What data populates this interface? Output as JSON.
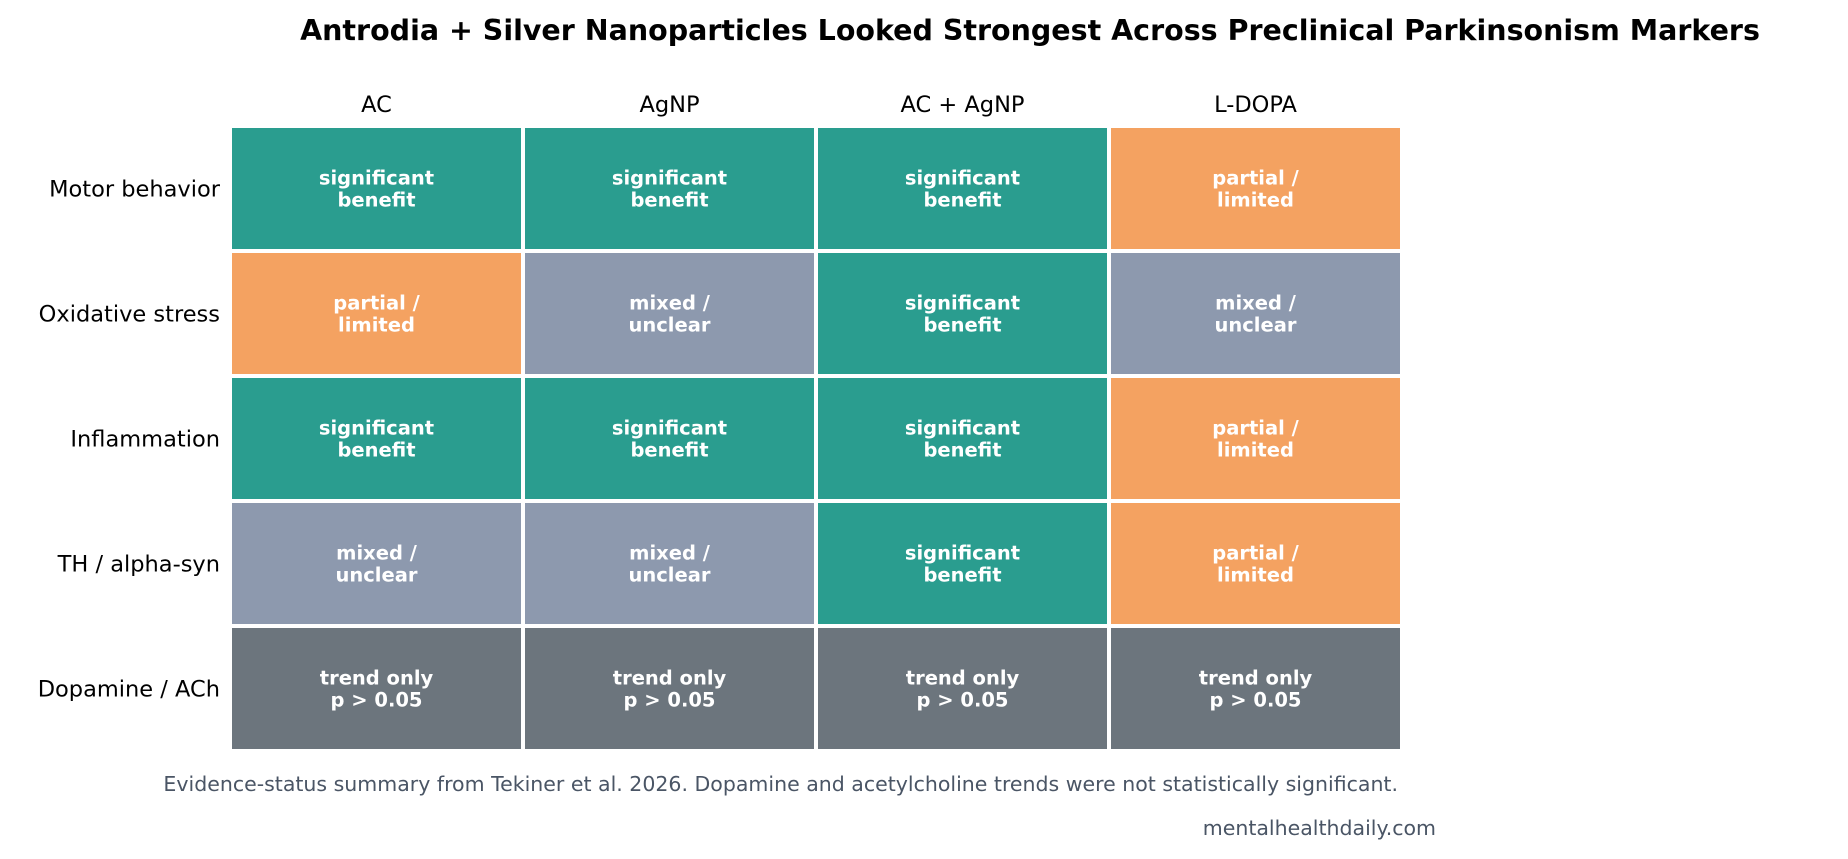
{
  "chart_data": {
    "type": "heatmap",
    "title": "Antrodia + Silver Nanoparticles Looked Strongest Across Preclinical Parkinsonism Markers",
    "columns": [
      "AC",
      "AgNP",
      "AC + AgNP",
      "L-DOPA"
    ],
    "rows": [
      "Motor behavior",
      "Oxidative stress",
      "Inflammation",
      "TH / alpha-syn",
      "Dopamine / ACh"
    ],
    "cells": [
      [
        "significant\nbenefit",
        "significant\nbenefit",
        "significant\nbenefit",
        "partial /\nlimited"
      ],
      [
        "partial /\nlimited",
        "mixed /\nunclear",
        "significant\nbenefit",
        "mixed /\nunclear"
      ],
      [
        "significant\nbenefit",
        "significant\nbenefit",
        "significant\nbenefit",
        "partial /\nlimited"
      ],
      [
        "mixed /\nunclear",
        "mixed /\nunclear",
        "significant\nbenefit",
        "partial /\nlimited"
      ],
      [
        "trend only\np > 0.05",
        "trend only\np > 0.05",
        "trend only\np > 0.05",
        "trend only\np > 0.05"
      ]
    ],
    "category_colors": {
      "significant\nbenefit": "#2a9d8f",
      "partial /\nlimited": "#f4a261",
      "mixed /\nunclear": "#8d99ae",
      "trend only\np > 0.05": "#6c757d"
    },
    "legend": "none",
    "grid": false
  },
  "footnote": "Evidence-status summary from Tekiner et al. 2026. Dopamine and acetylcholine trends were not statistically significant.",
  "source": "mentalhealthdaily.com",
  "colors": {
    "title": "#000000",
    "footnote": "#4a5565",
    "cell_text": "#ffffff",
    "cell_border": "#ffffff"
  }
}
